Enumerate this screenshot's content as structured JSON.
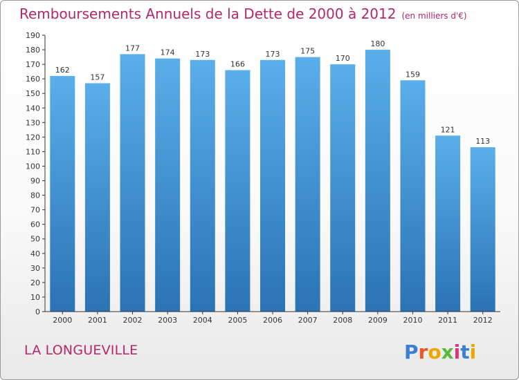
{
  "header": {
    "title": "Remboursements Annuels de la Dette de 2000 à 2012",
    "subtitle": "(en milliers d'€)"
  },
  "footer": {
    "commune": "LA LONGUEVILLE",
    "logo_text": "Proxiti"
  },
  "chart_data": {
    "type": "bar",
    "title": "Remboursements Annuels de la Dette de 2000 à 2012",
    "subtitle": "(en milliers d'€)",
    "categories": [
      "2000",
      "2001",
      "2002",
      "2003",
      "2004",
      "2005",
      "2006",
      "2007",
      "2008",
      "2009",
      "2010",
      "2011",
      "2012"
    ],
    "values": [
      162,
      157,
      177,
      174,
      173,
      166,
      173,
      175,
      170,
      180,
      159,
      121,
      113
    ],
    "ylim": [
      0,
      190
    ],
    "ytick_step": 10,
    "grid": false,
    "bar_color": "#3f8fd6",
    "bar_color_light": "#5aaeea",
    "bar_color_dark": "#2a73b5",
    "text_color": "#b5266b"
  }
}
